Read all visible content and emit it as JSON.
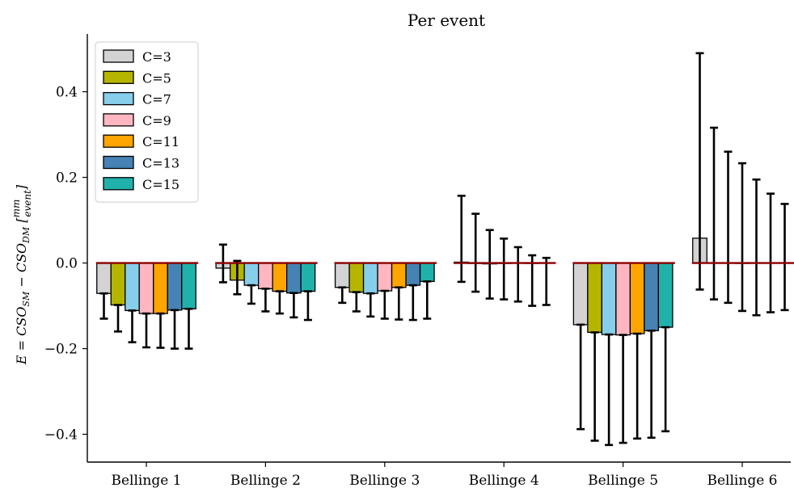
{
  "chart_data": {
    "type": "bar",
    "title": "Per event",
    "ylabel": "E = CSO_SM − CSO_DM [mm/event]",
    "ylabel_parts": {
      "lhs": "E = CSO",
      "sub1": "SM",
      "minus": " − CSO",
      "sub2": "DM",
      "unit_num": "mm",
      "unit_den": "event"
    },
    "xlabel": "",
    "categories": [
      "Bellinge 1",
      "Bellinge 2",
      "Bellinge 3",
      "Bellinge 4",
      "Bellinge 5",
      "Bellinge 6"
    ],
    "ylim": [
      -0.465,
      0.535
    ],
    "yticks": [
      -0.4,
      -0.2,
      0.0,
      0.2,
      0.4
    ],
    "ytick_labels": [
      "−0.4",
      "−0.2",
      "0.0",
      "0.2",
      "0.4"
    ],
    "legend_position": "top-left",
    "reference_line": {
      "y": 0.0,
      "color": "#8b0000"
    },
    "series": [
      {
        "name": "C=3",
        "color": "#d3d3d3",
        "values": [
          -0.071,
          -0.012,
          -0.057,
          0.002,
          -0.144,
          0.058
        ],
        "err_low": [
          -0.13,
          -0.045,
          -0.093,
          -0.044,
          -0.388,
          -0.062
        ],
        "err_high": [
          -0.071,
          0.043,
          -0.057,
          0.157,
          -0.144,
          0.49
        ]
      },
      {
        "name": "C=5",
        "color": "#b5b500",
        "values": [
          -0.098,
          -0.04,
          -0.068,
          -0.001,
          -0.162,
          0.0
        ],
        "err_low": [
          -0.16,
          -0.073,
          -0.113,
          -0.067,
          -0.415,
          -0.085
        ],
        "err_high": [
          -0.098,
          0.005,
          -0.068,
          0.115,
          -0.162,
          0.316
        ]
      },
      {
        "name": "C=7",
        "color": "#87ceeb",
        "values": [
          -0.111,
          -0.052,
          -0.071,
          -0.002,
          -0.167,
          0.0
        ],
        "err_low": [
          -0.185,
          -0.095,
          -0.125,
          -0.083,
          -0.425,
          -0.093
        ],
        "err_high": [
          -0.111,
          -0.052,
          -0.071,
          0.077,
          -0.167,
          0.26
        ]
      },
      {
        "name": "C=9",
        "color": "#ffb6c1",
        "values": [
          -0.118,
          -0.06,
          -0.065,
          -0.001,
          -0.168,
          -0.001
        ],
        "err_low": [
          -0.197,
          -0.113,
          -0.13,
          -0.085,
          -0.42,
          -0.112
        ],
        "err_high": [
          -0.118,
          -0.06,
          -0.065,
          0.057,
          -0.168,
          0.233
        ]
      },
      {
        "name": "C=11",
        "color": "#ffa500",
        "values": [
          -0.118,
          -0.066,
          -0.057,
          0.0,
          -0.165,
          0.0
        ],
        "err_low": [
          -0.198,
          -0.118,
          -0.132,
          -0.09,
          -0.41,
          -0.122
        ],
        "err_high": [
          -0.118,
          -0.066,
          -0.057,
          0.037,
          -0.165,
          0.195
        ]
      },
      {
        "name": "C=13",
        "color": "#4682b4",
        "values": [
          -0.11,
          -0.07,
          -0.052,
          -0.001,
          -0.158,
          0.0
        ],
        "err_low": [
          -0.2,
          -0.127,
          -0.133,
          -0.1,
          -0.408,
          -0.115
        ],
        "err_high": [
          -0.11,
          -0.07,
          -0.052,
          0.018,
          -0.158,
          0.162
        ]
      },
      {
        "name": "C=15",
        "color": "#20b2aa",
        "values": [
          -0.107,
          -0.066,
          -0.043,
          0.0,
          -0.15,
          0.0
        ],
        "err_low": [
          -0.2,
          -0.133,
          -0.13,
          -0.098,
          -0.393,
          -0.11
        ],
        "err_high": [
          -0.107,
          -0.066,
          -0.043,
          0.012,
          -0.15,
          0.138
        ]
      }
    ]
  }
}
